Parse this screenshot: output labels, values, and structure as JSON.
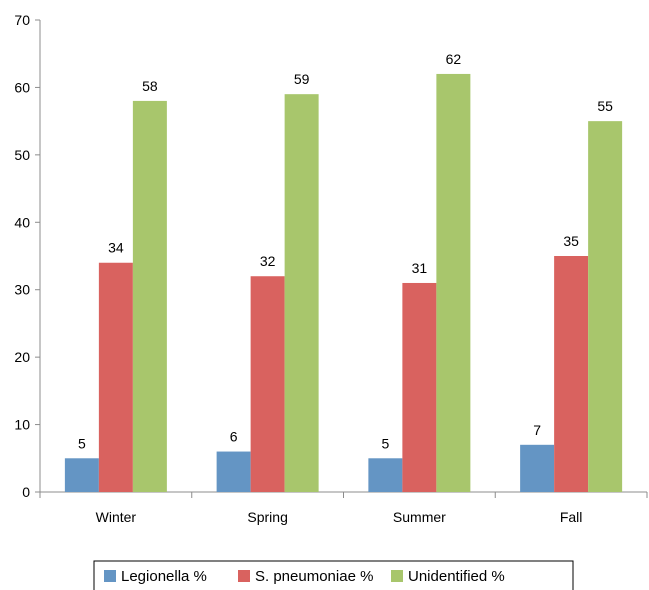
{
  "chart_data": {
    "type": "bar",
    "categories": [
      "Winter",
      "Spring",
      "Summer",
      "Fall"
    ],
    "series": [
      {
        "name": "Legionella %",
        "values": [
          5,
          6,
          5,
          7
        ],
        "color": "#6495c4"
      },
      {
        "name": "S. pneumoniae %",
        "values": [
          34,
          32,
          31,
          35
        ],
        "color": "#d9625f"
      },
      {
        "name": "Unidentified %",
        "values": [
          58,
          59,
          62,
          55
        ],
        "color": "#a8c66c"
      }
    ],
    "ylim": [
      0,
      70
    ],
    "yticks": [
      "0",
      "10",
      "20",
      "30",
      "40",
      "50",
      "60",
      "70"
    ],
    "title": "",
    "xlabel": "",
    "ylabel": "",
    "grid": false,
    "legend_position": "bottom"
  }
}
